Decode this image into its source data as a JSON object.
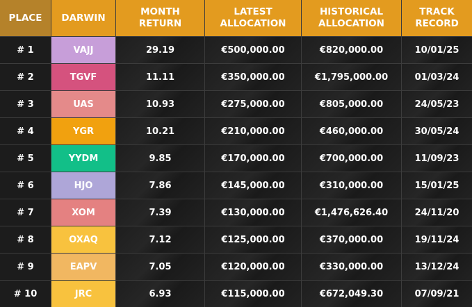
{
  "table": {
    "header": [
      "PLACE",
      "DARWIN",
      "MONTH\nRETURN",
      "LATEST\nALLOCATION",
      "HISTORICAL\nALLOCATION",
      "TRACK\nRECORD"
    ],
    "rows": [
      [
        "# 1",
        "VAJJ",
        "29.19",
        "€500,000.00",
        "€820,000.00",
        "10/01/25"
      ],
      [
        "# 2",
        "TGVF",
        "11.11",
        "€350,000.00",
        "€1,795,000.00",
        "01/03/24"
      ],
      [
        "# 3",
        "UAS",
        "10.93",
        "€275,000.00",
        "€805,000.00",
        "24/05/23"
      ],
      [
        "# 4",
        "YGR",
        "10.21",
        "€210,000.00",
        "€460,000.00",
        "30/05/24"
      ],
      [
        "# 5",
        "YYDM",
        "9.85",
        "€170,000.00",
        "€700,000.00",
        "11/09/23"
      ],
      [
        "# 6",
        "HJO",
        "7.86",
        "€145,000.00",
        "€310,000.00",
        "15/01/25"
      ],
      [
        "# 7",
        "XOM",
        "7.39",
        "€130,000.00",
        "€1,476,626.40",
        "24/11/20"
      ],
      [
        "# 8",
        "OXAQ",
        "7.12",
        "€125,000.00",
        "€370,000.00",
        "19/11/24"
      ],
      [
        "# 9",
        "EAPV",
        "7.05",
        "€120,000.00",
        "€330,000.00",
        "13/12/24"
      ],
      [
        "# 10",
        "JRC",
        "6.93",
        "€115,000.00",
        "€672,049.30",
        "07/09/21"
      ]
    ]
  }
}
